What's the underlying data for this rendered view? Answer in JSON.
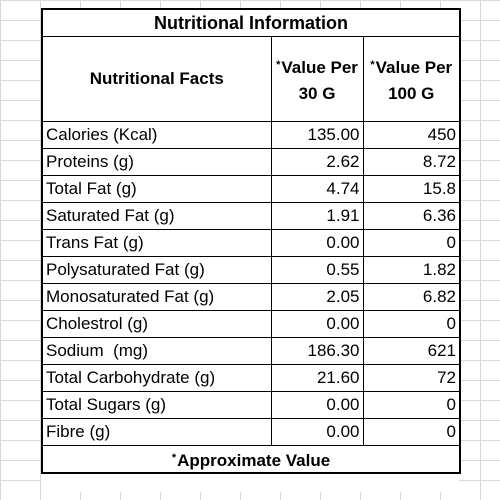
{
  "table": {
    "title": "Nutritional Information",
    "header": {
      "facts": "Nutritional Facts",
      "col1_marker": "*",
      "col1_label": "Value Per 30 G",
      "col2_marker": "*",
      "col2_label": "Value Per 100 G"
    },
    "rows": [
      {
        "name": "Calories (Kcal)",
        "per30": "135.00",
        "per100": "450"
      },
      {
        "name": "Proteins (g)",
        "per30": "2.62",
        "per100": "8.72"
      },
      {
        "name": "Total Fat (g)",
        "per30": "4.74",
        "per100": "15.8"
      },
      {
        "name": "Saturated Fat (g)",
        "per30": "1.91",
        "per100": "6.36"
      },
      {
        "name": "Trans Fat (g)",
        "per30": "0.00",
        "per100": "0"
      },
      {
        "name": "Polysaturated Fat (g)",
        "per30": "0.55",
        "per100": "1.82"
      },
      {
        "name": "Monosaturated Fat (g)",
        "per30": "2.05",
        "per100": "6.82"
      },
      {
        "name": "Cholestrol (g)",
        "per30": "0.00",
        "per100": "0"
      },
      {
        "name": "Sodium  (mg)",
        "per30": "186.30",
        "per100": "621"
      },
      {
        "name": "Total Carbohydrate (g)",
        "per30": "21.60",
        "per100": "72"
      },
      {
        "name": "Total Sugars (g)",
        "per30": "0.00",
        "per100": "0"
      },
      {
        "name": "Fibre (g)",
        "per30": "0.00",
        "per100": "0"
      }
    ],
    "footer_marker": "*",
    "footer": "Approximate Value"
  }
}
